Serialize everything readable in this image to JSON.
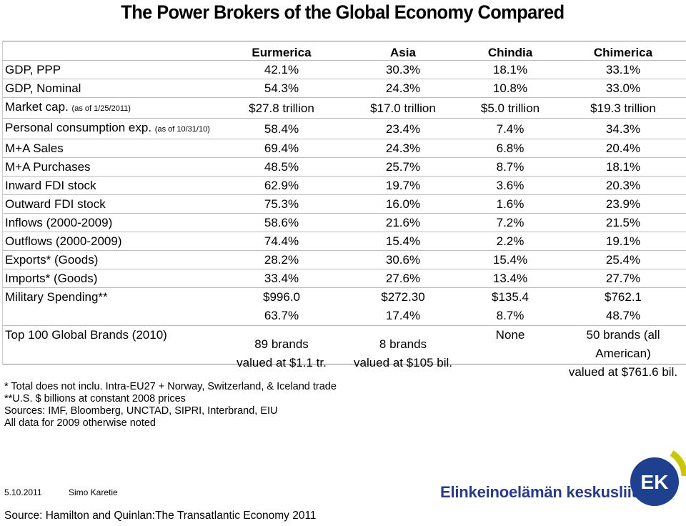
{
  "title": "The Power Brokers of the Global Economy Compared",
  "table": {
    "columns": [
      "",
      "Eurmerica",
      "Asia",
      "Chindia",
      "Chimerica"
    ],
    "rows": [
      {
        "label": "GDP, PPP",
        "note": "",
        "values": [
          "42.1%",
          "30.3%",
          "18.1%",
          "33.1%"
        ]
      },
      {
        "label": "GDP, Nominal",
        "note": "",
        "values": [
          "54.3%",
          "24.3%",
          "10.8%",
          "33.0%"
        ]
      },
      {
        "label": "Market cap.",
        "note": "(as of 1/25/2011)",
        "values": [
          "$27.8 trillion",
          "$17.0 trillion",
          "$5.0 trillion",
          "$19.3 trillion"
        ]
      },
      {
        "label": "Personal consumption exp.",
        "note": "(as of 10/31/10)",
        "values": [
          "58.4%",
          "23.4%",
          "7.4%",
          "34.3%"
        ]
      },
      {
        "label": "M+A Sales",
        "note": "",
        "values": [
          "69.4%",
          "24.3%",
          "6.8%",
          "20.4%"
        ]
      },
      {
        "label": "M+A Purchases",
        "note": "",
        "values": [
          "48.5%",
          "25.7%",
          "8.7%",
          "18.1%"
        ]
      },
      {
        "label": "Inward FDI stock",
        "note": "",
        "values": [
          "62.9%",
          "19.7%",
          "3.6%",
          "20.3%"
        ]
      },
      {
        "label": "Outward FDI stock",
        "note": "",
        "values": [
          "75.3%",
          "16.0%",
          "1.6%",
          "23.9%"
        ]
      },
      {
        "label": "Inflows (2000-2009)",
        "note": "",
        "values": [
          "58.6%",
          "21.6%",
          "7.2%",
          "21.5%"
        ]
      },
      {
        "label": "Outflows (2000-2009)",
        "note": "",
        "values": [
          "74.4%",
          "15.4%",
          "2.2%",
          "19.1%"
        ]
      },
      {
        "label": "Exports* (Goods)",
        "note": "",
        "values": [
          "28.2%",
          "30.6%",
          "15.4%",
          "25.4%"
        ]
      },
      {
        "label": "Imports* (Goods)",
        "note": "",
        "values": [
          "33.4%",
          "27.6%",
          "13.4%",
          "27.7%"
        ]
      }
    ],
    "military": {
      "label": "Military Spending**",
      "values": [
        [
          "$996.0",
          "63.7%"
        ],
        [
          "$272.30",
          "17.4%"
        ],
        [
          "$135.4",
          "8.7%"
        ],
        [
          "$762.1",
          "48.7%"
        ]
      ]
    },
    "brands": {
      "label": "Top 100 Global Brands (2010)",
      "values": [
        [
          "89 brands",
          "valued at $1.1 tr."
        ],
        [
          "8 brands",
          "valued at $105 bil."
        ],
        [
          "None",
          ""
        ],
        [
          "50 brands (all American)",
          "valued at $761.6 bil."
        ]
      ]
    }
  },
  "notes": [
    "* Total does not inclu. Intra-EU27 + Norway, Switzerland, & Iceland trade",
    "**U.S. $ billions at constant 2008 prices",
    "Sources: IMF, Bloomberg, UNCTAD, SIPRI, Interbrand, EIU",
    "All data for 2009 otherwise noted"
  ],
  "footer": {
    "date": "5.10.2011",
    "author": "Simo Karetie",
    "source": "Source: Hamilton and Quinlan:The Transatlantic Economy 2011",
    "brand": "Elinkeinoelämän keskusliitto",
    "logo_text": "EK"
  },
  "colors": {
    "brand_blue": "#2a3a8a",
    "logo_blue": "#1f3f8f",
    "logo_yellow": "#c9c800"
  }
}
